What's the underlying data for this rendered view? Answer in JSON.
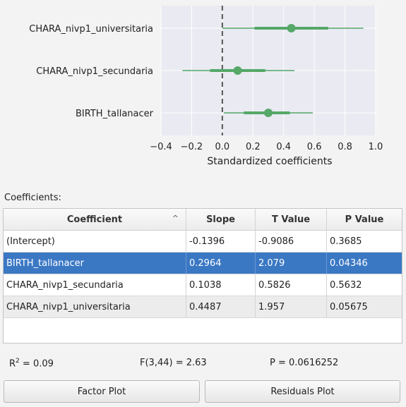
{
  "chart_data": {
    "type": "forest",
    "xlabel": "Standardized coefficients",
    "xlim": [
      -0.4,
      1.0
    ],
    "xticks": [
      "−0.4",
      "−0.2",
      "0.0",
      "0.2",
      "0.4",
      "0.6",
      "0.8",
      "1.0"
    ],
    "categories": [
      "CHARA_nivp1_universitaria",
      "CHARA_nivp1_secundaria",
      "BIRTH_tallanacer"
    ],
    "estimates": [
      0.45,
      0.1,
      0.3
    ],
    "ci_inner": [
      [
        0.21,
        0.69
      ],
      [
        -0.08,
        0.28
      ],
      [
        0.14,
        0.44
      ]
    ],
    "ci_outer": [
      [
        0.0,
        0.92
      ],
      [
        -0.26,
        0.47
      ],
      [
        0.01,
        0.59
      ]
    ],
    "reference_line": 0.0,
    "point_color": "#55a868",
    "background": "#eaeaf2",
    "grid": true
  },
  "coefficients_label": "Coefficients:",
  "table": {
    "headers": [
      "Coefficient",
      "Slope",
      "T Value",
      "P Value"
    ],
    "sort_indicator": "^",
    "rows": [
      [
        "(Intercept)",
        "-0.1396",
        "-0.9086",
        "0.3685"
      ],
      [
        "BIRTH_tallanacer",
        "0.2964",
        "2.079",
        "0.04346"
      ],
      [
        "CHARA_nivp1_secundaria",
        "0.1038",
        "0.5826",
        "0.5632"
      ],
      [
        "CHARA_nivp1_universitaria",
        "0.4487",
        "1.957",
        "0.05675"
      ]
    ],
    "selected_row": "BIRTH_tallanacer"
  },
  "stats": {
    "r2_symbol": "R",
    "r2_sup": "2",
    "r2_value": " = 0.09",
    "f_stat": "F(3,44) = 2.63",
    "p_value": "P = 0.0616252"
  },
  "buttons": {
    "factor_plot": "Factor Plot",
    "residuals_plot": "Residuals Plot"
  }
}
